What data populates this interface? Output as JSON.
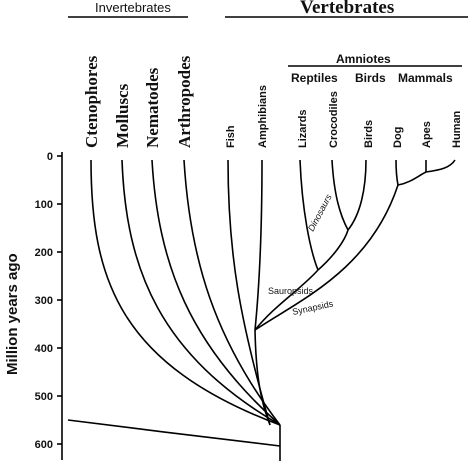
{
  "headers": {
    "invertebrates": "Invertebrates",
    "vertebrates": "Vertebrates"
  },
  "groups": {
    "amniotes": "Amniotes",
    "reptiles": "Reptiles",
    "birds": "Birds",
    "mammals": "Mammals"
  },
  "taxa": {
    "ctenophores": "Ctenophores",
    "molluscs": "Molluscs",
    "nematodes": "Nematodes",
    "arthropodes": "Arthropodes",
    "fish": "Fish",
    "amphibians": "Amphibians",
    "lizards": "Lizards",
    "crocodiles": "Crocodiles",
    "birds": "Birds",
    "dog": "Dog",
    "apes": "Apes",
    "human": "Human"
  },
  "clades": {
    "dinosaurs": "Dinosaurs",
    "sauropsids": "Sauropsids",
    "synapsids": "Synapsids"
  },
  "axis": {
    "label": "Million years ago",
    "ticks": [
      "0",
      "100",
      "200",
      "300",
      "400",
      "500",
      "600"
    ]
  }
}
